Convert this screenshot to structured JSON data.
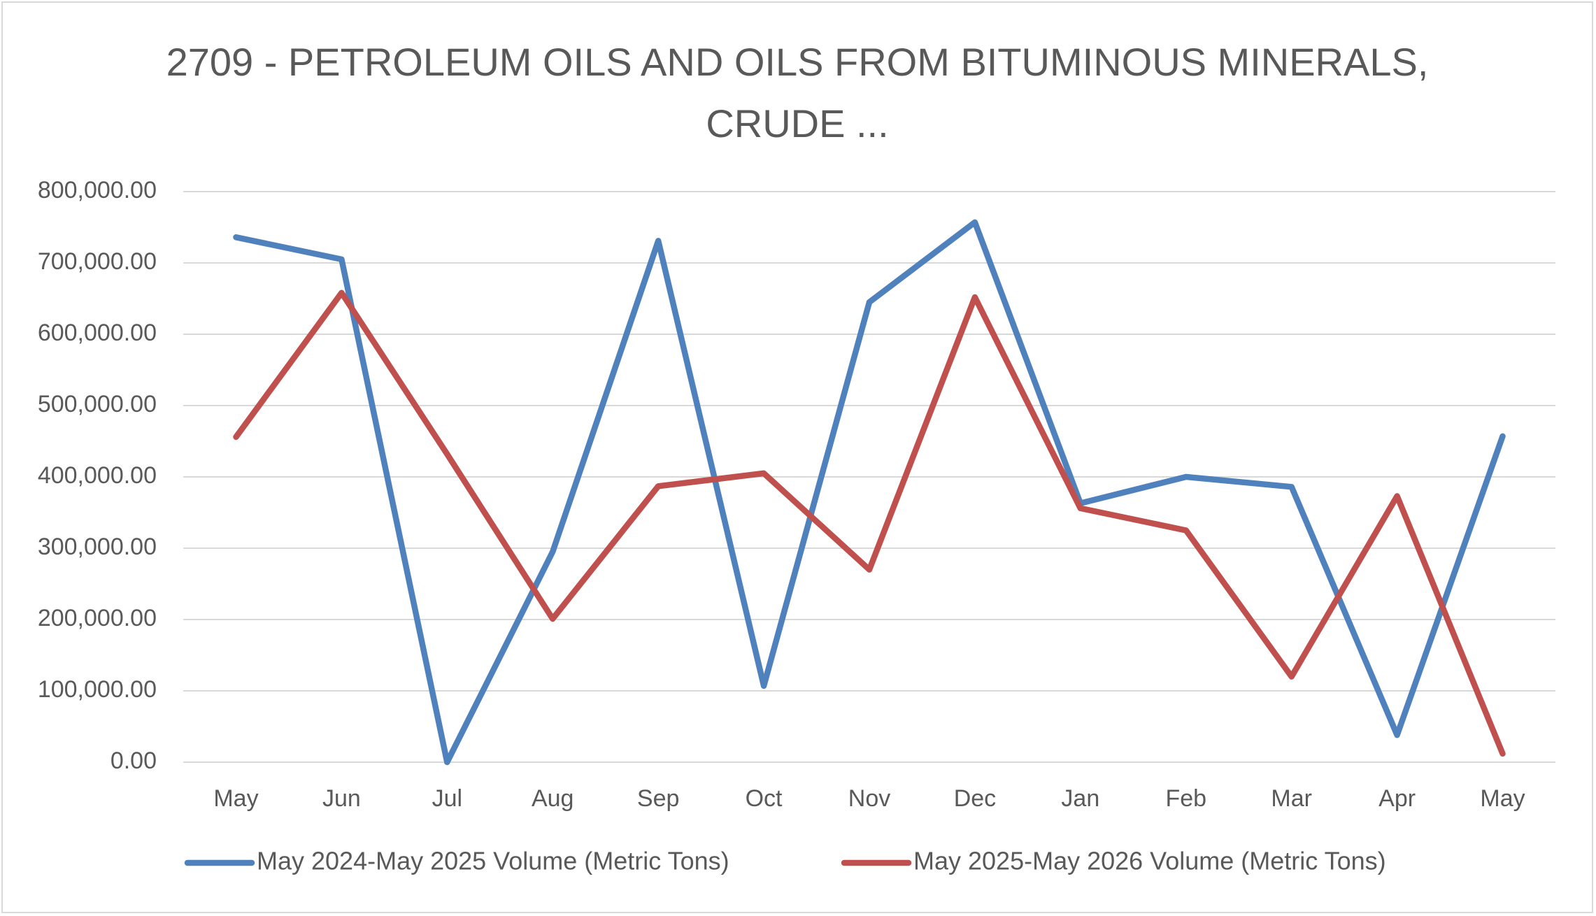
{
  "chart_data": {
    "type": "line",
    "title": "2709 - PETROLEUM OILS AND OILS FROM BITUMINOUS MINERALS, CRUDE ...",
    "categories": [
      "May",
      "Jun",
      "Jul",
      "Aug",
      "Sep",
      "Oct",
      "Nov",
      "Dec",
      "Jan",
      "Feb",
      "Mar",
      "Apr",
      "May"
    ],
    "series": [
      {
        "name": "May 2024-May 2025 Volume (Metric Tons)",
        "color": "#4f81bd",
        "values": [
          736000,
          705000,
          0,
          295000,
          731000,
          107000,
          645000,
          757000,
          363000,
          400000,
          386000,
          38000,
          457000
        ]
      },
      {
        "name": "May 2025-May 2026 Volume (Metric Tons)",
        "color": "#c0504d",
        "values": [
          456000,
          658000,
          432000,
          201000,
          387000,
          405000,
          270000,
          652000,
          356000,
          325000,
          120000,
          373000,
          12000
        ]
      }
    ],
    "ylim": [
      0,
      800000
    ],
    "yticks": [
      {
        "value": 0,
        "label": "0.00"
      },
      {
        "value": 100000,
        "label": "100,000.00"
      },
      {
        "value": 200000,
        "label": "200,000.00"
      },
      {
        "value": 300000,
        "label": "300,000.00"
      },
      {
        "value": 400000,
        "label": "400,000.00"
      },
      {
        "value": 500000,
        "label": "500,000.00"
      },
      {
        "value": 600000,
        "label": "600,000.00"
      },
      {
        "value": 700000,
        "label": "700,000.00"
      },
      {
        "value": 800000,
        "label": "800,000.00"
      }
    ],
    "grid": true,
    "legend": "bottom"
  }
}
